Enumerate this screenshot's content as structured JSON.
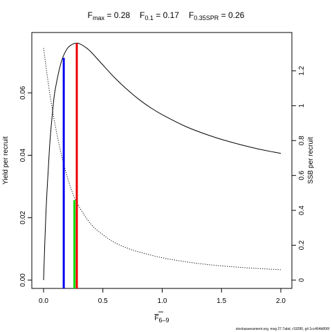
{
  "title": {
    "fmax": {
      "sym": "F",
      "sub": "max",
      "eq": " = 0.28"
    },
    "f01": {
      "sym": "F",
      "sub": "0.1",
      "eq": " = 0.17"
    },
    "fspr": {
      "sym": "F",
      "sub": "0.35SPR",
      "eq": " = 0.26"
    }
  },
  "footer": "stockassessment.org, msg 27.7abd, r19280, git 1cc464b806f",
  "chart_data": {
    "type": "line",
    "xlabel": {
      "base": "F",
      "sub": "6–9"
    },
    "ylabel_left": "Yield per recruit",
    "ylabel_right": "SSB per recruit",
    "xlim": [
      0,
      2
    ],
    "ylim_left": [
      0,
      0.076
    ],
    "ylim_right": [
      0,
      1.36
    ],
    "x_ticks": [
      0,
      0.5,
      1,
      1.5,
      2
    ],
    "x_tick_labels": [
      "0.0",
      "0.5",
      "1.0",
      "1.5",
      "2.0"
    ],
    "y_left_ticks": [
      0,
      0.02,
      0.04,
      0.06
    ],
    "y_left_tick_labels": [
      "0.00",
      "0.02",
      "0.04",
      "0.06"
    ],
    "y_right_ticks": [
      0,
      0.2,
      0.4,
      0.6,
      0.8,
      1.0,
      1.2
    ],
    "y_right_tick_labels": [
      "0",
      "0.2",
      "0.4",
      "0.6",
      "0.8",
      "1",
      "1.2"
    ],
    "series": [
      {
        "axis": "left",
        "style": "solid",
        "color": "#000000",
        "x": [
          0,
          0.02,
          0.05,
          0.08,
          0.1,
          0.15,
          0.2,
          0.25,
          0.28,
          0.3,
          0.35,
          0.4,
          0.5,
          0.6,
          0.7,
          0.8,
          0.9,
          1.0,
          1.2,
          1.4,
          1.6,
          1.8,
          2.0
        ],
        "y": [
          0,
          0.0215,
          0.0425,
          0.0555,
          0.0615,
          0.07,
          0.0742,
          0.0757,
          0.0759,
          0.0758,
          0.0747,
          0.0731,
          0.0689,
          0.0648,
          0.0612,
          0.058,
          0.0553,
          0.053,
          0.0492,
          0.0463,
          0.044,
          0.0421,
          0.0406
        ]
      },
      {
        "axis": "right",
        "style": "dotted",
        "color": "#000000",
        "x": [
          0,
          0.05,
          0.1,
          0.15,
          0.2,
          0.25,
          0.3,
          0.4,
          0.5,
          0.6,
          0.7,
          0.8,
          1.0,
          1.2,
          1.4,
          1.6,
          1.8,
          2.0
        ],
        "y": [
          1.33,
          1.08,
          0.88,
          0.72,
          0.59,
          0.49,
          0.42,
          0.32,
          0.26,
          0.215,
          0.185,
          0.162,
          0.128,
          0.105,
          0.088,
          0.076,
          0.067,
          0.06
        ]
      }
    ],
    "ref_lines": [
      {
        "name": "F0.1",
        "x": 0.17,
        "axis": "left",
        "y": 0.0712,
        "color": "#0000ee"
      },
      {
        "name": "Fmax",
        "x": 0.28,
        "axis": "left",
        "y": 0.0759,
        "color": "#ee0000"
      },
      {
        "name": "F0.35SPR",
        "x": 0.26,
        "axis": "left",
        "y": 0.0256,
        "color": "#00dd00"
      }
    ]
  }
}
